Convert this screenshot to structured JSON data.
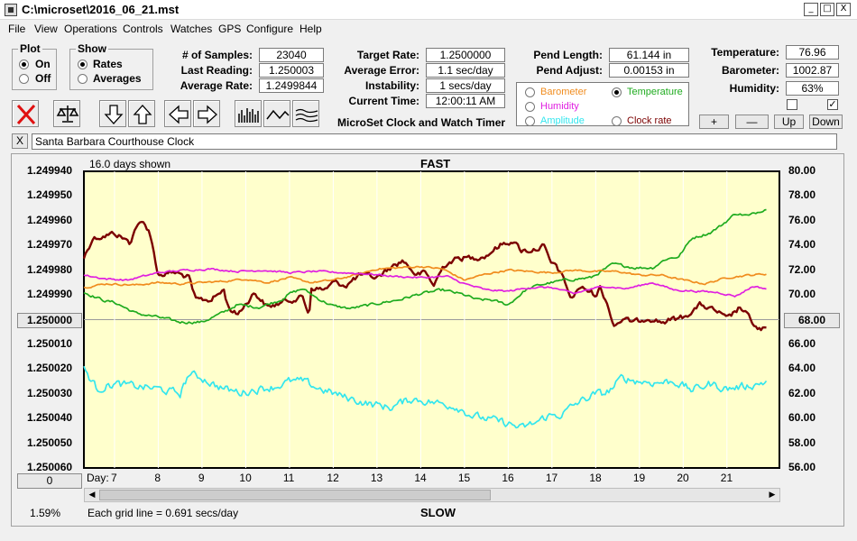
{
  "window": {
    "title": "C:\\microset\\2016_06_21.mst",
    "controls": {
      "minimize": "_",
      "maximize": "□",
      "close": "X"
    }
  },
  "menu": [
    "File",
    "View",
    "Operations",
    "Controls",
    "Watches",
    "GPS",
    "Configure",
    "Help"
  ],
  "plot_group": {
    "title": "Plot",
    "on": "On",
    "off": "Off",
    "selected": "On"
  },
  "show_group": {
    "title": "Show",
    "rates": "Rates",
    "averages": "Averages",
    "selected": "Rates"
  },
  "fields": {
    "samples": {
      "label": "# of Samples:",
      "value": "23040"
    },
    "last_reading": {
      "label": "Last Reading:",
      "value": "1.250003"
    },
    "average_rate": {
      "label": "Average Rate:",
      "value": "1.2499844"
    },
    "target_rate": {
      "label": "Target Rate:",
      "value": "1.2500000"
    },
    "average_error": {
      "label": "Average Error:",
      "value": "1.1 sec/day"
    },
    "instability": {
      "label": "Instability:",
      "value": "1 secs/day"
    },
    "current_time": {
      "label": "Current Time:",
      "value": "12:00:11 AM"
    },
    "pend_length": {
      "label": "Pend Length:",
      "value": "61.144 in"
    },
    "pend_adjust": {
      "label": "Pend Adjust:",
      "value": "0.00153 in"
    },
    "temperature": {
      "label": "Temperature:",
      "value": "76.96"
    },
    "barometer": {
      "label": "Barometer:",
      "value": "1002.87"
    },
    "humidity": {
      "label": "Humidity:",
      "value": "63%"
    }
  },
  "app_caption": "MicroSet Clock and Watch Timer",
  "plot_options": {
    "barometer": "Barometer",
    "temperature": "Temperature",
    "humidity": "Humidity",
    "amplitude": "Amplitude",
    "clock_rate": "Clock rate",
    "selected": "Temperature"
  },
  "adjust_buttons": {
    "plus": "+",
    "minus": "—",
    "up": "Up",
    "down": "Down"
  },
  "checkboxes": {
    "left": false,
    "right": true
  },
  "clock_name": {
    "close_label": "X",
    "value": "Santa Barbara Courthouse Clock"
  },
  "colors": {
    "plot_bg": "#ffffcc",
    "rate": "#7b0000",
    "temperature": "#1fab1f",
    "barometer": "#f08c1e",
    "humidity": "#e020e0",
    "amplitude": "#33e6ee",
    "reference_line": "#9a9a9a",
    "close_red": "#e01010"
  },
  "chart_data": {
    "type": "line",
    "title": "FAST",
    "bottom_title": "SLOW",
    "days_shown": "16.0 days shown",
    "grid_note": "Each grid line = 0.691 secs/day",
    "zoom_pct": "1.59%",
    "left_button": "1.250000",
    "right_button": "68.00",
    "bottom_left_button": "0",
    "x_axis_label": "Day:",
    "x_ticks": [
      "7",
      "8",
      "9",
      "10",
      "11",
      "12",
      "13",
      "14",
      "15",
      "16",
      "17",
      "18",
      "19",
      "20",
      "21"
    ],
    "xlim": [
      6.3,
      22.2
    ],
    "left_axis": {
      "ticks": [
        "1.249940",
        "1.249950",
        "1.249960",
        "1.249970",
        "1.249980",
        "1.249990",
        "1.250000",
        "1.250010",
        "1.250020",
        "1.250030",
        "1.250040",
        "1.250050",
        "1.250060"
      ],
      "range": [
        1.24994,
        1.25006
      ],
      "inverted": true
    },
    "right_axis": {
      "ticks": [
        "80.00",
        "78.00",
        "76.00",
        "74.00",
        "72.00",
        "70.00",
        "68.00",
        "66.00",
        "64.00",
        "62.00",
        "60.00",
        "58.00",
        "56.00"
      ],
      "range": [
        56,
        80
      ]
    },
    "series": [
      {
        "key": "rate",
        "axis": "left",
        "noise": 1.2e-06,
        "x": [
          6.3,
          6.5,
          6.8,
          7.0,
          7.2,
          7.35,
          7.5,
          7.65,
          7.8,
          8.0,
          8.3,
          8.4,
          8.7,
          8.85,
          9.2,
          9.5,
          9.6,
          9.8,
          10.2,
          10.5,
          11.0,
          11.3,
          11.45,
          11.5,
          11.8,
          12.0,
          12.3,
          12.6,
          13.0,
          13.3,
          13.6,
          13.9,
          14.1,
          14.3,
          14.5,
          14.6,
          14.9,
          15.2,
          15.5,
          15.8,
          16.1,
          16.3,
          16.5,
          16.7,
          16.8,
          17.0,
          17.1,
          17.3,
          17.45,
          17.6,
          17.8,
          18.0,
          18.1,
          18.3,
          18.4,
          18.45,
          18.6,
          18.9,
          19.2,
          19.5,
          20.0,
          20.4,
          20.8,
          21.0,
          21.3,
          21.5,
          21.7,
          21.9
        ],
        "y": [
          1.249975,
          1.249967,
          1.249966,
          1.249965,
          1.249967,
          1.249969,
          1.249962,
          1.249961,
          1.249964,
          1.249982,
          1.249981,
          1.249981,
          1.249983,
          1.249992,
          1.249992,
          1.249988,
          1.249995,
          1.249998,
          1.249989,
          1.249995,
          1.249992,
          1.249991,
          1.249998,
          1.249987,
          1.249988,
          1.249985,
          1.249986,
          1.249982,
          1.249983,
          1.249979,
          1.249976,
          1.249982,
          1.249981,
          1.249986,
          1.249979,
          1.249977,
          1.249975,
          1.249975,
          1.249974,
          1.24997,
          1.249968,
          1.249972,
          1.249972,
          1.249971,
          1.24997,
          1.249978,
          1.249978,
          1.249985,
          1.249992,
          1.249987,
          1.249988,
          1.24999,
          1.249987,
          1.249995,
          1.250002,
          1.250002,
          1.25,
          1.250001,
          1.249999,
          1.250001,
          1.249999,
          1.249994,
          1.249997,
          1.25,
          1.249995,
          1.249999,
          1.250004,
          1.250004
        ]
      },
      {
        "key": "temperature",
        "axis": "right",
        "noise": 0.12,
        "x": [
          6.3,
          6.8,
          7.0,
          7.5,
          8.0,
          8.5,
          9.0,
          9.5,
          9.8,
          10.3,
          10.8,
          11.0,
          11.3,
          11.7,
          12.0,
          12.4,
          13.0,
          13.5,
          14.0,
          14.5,
          15.0,
          15.3,
          15.6,
          16.0,
          16.4,
          16.7,
          17.0,
          17.3,
          17.6,
          17.9,
          18.4,
          18.9,
          19.3,
          19.6,
          19.9,
          20.2,
          20.6,
          20.9,
          21.2,
          21.5,
          21.9
        ],
        "y": [
          70.2,
          69.5,
          69.4,
          68.5,
          68.2,
          67.8,
          67.8,
          68.6,
          69.2,
          69.0,
          69.6,
          70.1,
          70.5,
          69.6,
          69.1,
          68.9,
          69.3,
          69.6,
          70.1,
          70.4,
          70.0,
          69.6,
          69.6,
          69.2,
          70.4,
          70.8,
          71.0,
          71.2,
          71.3,
          71.4,
          72.5,
          72.2,
          72.2,
          72.9,
          73.1,
          74.6,
          75.0,
          75.7,
          76.6,
          76.4,
          77.0
        ]
      },
      {
        "key": "barometer",
        "axis": "right",
        "noise": 0.08,
        "x": [
          6.3,
          6.8,
          7.5,
          8.0,
          8.5,
          9.0,
          9.5,
          10.0,
          10.5,
          11.0,
          11.5,
          12.0,
          12.5,
          13.0,
          13.5,
          14.0,
          14.5,
          15.0,
          15.5,
          16.0,
          16.5,
          17.0,
          17.5,
          18.0,
          18.5,
          19.0,
          19.5,
          20.0,
          20.5,
          21.0,
          21.5,
          21.9
        ],
        "y": [
          70.6,
          70.9,
          70.8,
          71.0,
          70.9,
          71.0,
          71.1,
          71.3,
          71.0,
          71.4,
          71.0,
          71.2,
          71.6,
          72.1,
          72.2,
          72.3,
          72.1,
          71.2,
          71.7,
          72.0,
          71.9,
          71.8,
          72.0,
          71.9,
          71.9,
          71.6,
          71.6,
          71.2,
          70.9,
          71.4,
          71.6,
          71.7
        ]
      },
      {
        "key": "humidity",
        "axis": "right",
        "noise": 0.08,
        "x": [
          6.3,
          6.8,
          7.3,
          8.0,
          8.6,
          9.2,
          9.8,
          10.4,
          11.0,
          11.6,
          12.2,
          12.8,
          13.4,
          14.0,
          14.6,
          15.0,
          15.5,
          16.0,
          16.5,
          17.0,
          17.5,
          17.8,
          18.2,
          18.7,
          19.3,
          19.8,
          20.3,
          20.8,
          21.2,
          21.6,
          21.9
        ],
        "y": [
          71.6,
          71.3,
          71.2,
          71.8,
          72.0,
          72.1,
          71.9,
          72.0,
          71.8,
          71.9,
          71.8,
          71.7,
          71.5,
          71.4,
          71.5,
          70.9,
          70.4,
          70.3,
          70.6,
          70.6,
          70.1,
          70.4,
          70.7,
          70.5,
          71.0,
          70.4,
          70.3,
          70.2,
          69.9,
          70.7,
          70.5
        ]
      },
      {
        "key": "amplitude",
        "axis": "right",
        "noise": 0.35,
        "x": [
          6.3,
          6.6,
          7.0,
          7.5,
          8.0,
          8.5,
          8.7,
          9.0,
          9.3,
          9.6,
          9.9,
          10.3,
          10.7,
          11.0,
          11.3,
          11.7,
          12.2,
          12.8,
          13.3,
          13.8,
          14.3,
          14.8,
          15.2,
          15.6,
          16.0,
          16.3,
          16.6,
          16.9,
          17.2,
          17.6,
          18.0,
          18.2,
          18.4,
          18.6,
          19.0,
          19.4,
          19.8,
          20.2,
          20.6,
          21.0,
          21.4,
          21.7,
          21.9
        ],
        "y": [
          64.0,
          62.4,
          62.8,
          62.6,
          62.4,
          62.0,
          63.6,
          63.3,
          62.7,
          62.3,
          62.1,
          62.4,
          62.6,
          63.0,
          63.0,
          62.4,
          61.8,
          61.2,
          60.9,
          61.6,
          61.3,
          61.0,
          60.2,
          59.9,
          59.6,
          59.2,
          59.6,
          60.2,
          60.3,
          61.3,
          62.0,
          62.0,
          62.5,
          63.3,
          63.0,
          62.9,
          63.0,
          62.3,
          62.8,
          62.4,
          62.6,
          62.8,
          63.0
        ]
      }
    ]
  }
}
